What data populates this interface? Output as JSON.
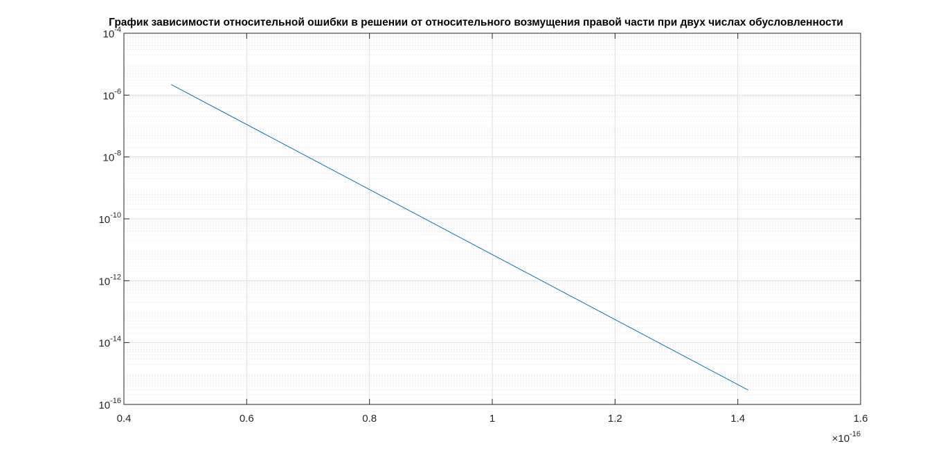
{
  "title": "График зависимости относительной ошибки в решении от относительного возмущения правой части при двух числах обусловленности",
  "chart_data": {
    "type": "line",
    "title": "График зависимости относительной ошибки в решении от относительного возмущения правой части при двух числах обусловленности",
    "xlabel": "",
    "ylabel": "",
    "x_multiplier": "×10^-16",
    "xlim": [
      0.4,
      1.6
    ],
    "ylim": [
      1e-16,
      0.0001
    ],
    "yscale": "log",
    "grid": true,
    "minor_grid": true,
    "x_ticks": [
      0.4,
      0.6,
      0.8,
      1,
      1.2,
      1.4,
      1.6
    ],
    "x_tick_labels": [
      "0.4",
      "0.6",
      "0.8",
      "1",
      "1.2",
      "1.4",
      "1.6"
    ],
    "y_ticks": [
      1e-16,
      1e-14,
      1e-12,
      1e-10,
      1e-08,
      1e-06,
      0.0001
    ],
    "y_tick_labels": [
      {
        "base": "10",
        "exp": "-16"
      },
      {
        "base": "10",
        "exp": "-14"
      },
      {
        "base": "10",
        "exp": "-12"
      },
      {
        "base": "10",
        "exp": "-10"
      },
      {
        "base": "10",
        "exp": "-8"
      },
      {
        "base": "10",
        "exp": "-6"
      },
      {
        "base": "10",
        "exp": "-4"
      }
    ],
    "series": [
      {
        "color": "#0072BD",
        "x": [
          0.477,
          1.417
        ],
        "y": [
          2.2e-06,
          2.9e-16
        ]
      }
    ]
  },
  "colors": {
    "axis": "#262626",
    "grid": "#dfdfdf",
    "minor_grid": "#ececec",
    "line": "#0072BD"
  },
  "x_exponent": {
    "prefix": "×10",
    "exp": "-16"
  }
}
